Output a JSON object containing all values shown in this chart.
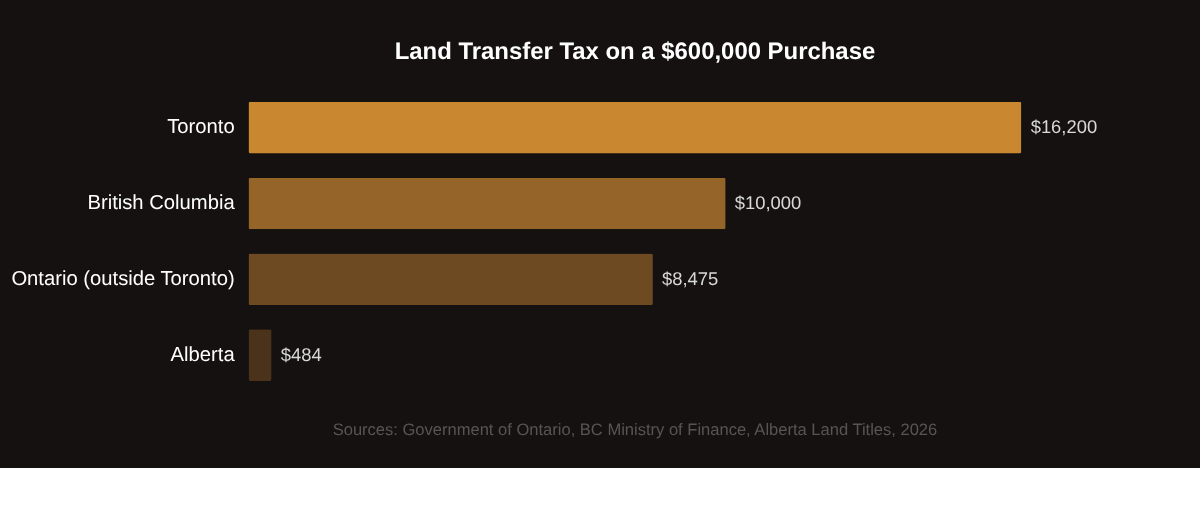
{
  "chart_data": {
    "type": "bar",
    "orientation": "horizontal",
    "title": "Land Transfer Tax on a $600,000 Purchase",
    "categories": [
      "Toronto",
      "British Columbia",
      "Ontario (outside Toronto)",
      "Alberta"
    ],
    "values": [
      16200,
      10000,
      8475,
      484
    ],
    "colors": [
      "#c98830",
      "#946429",
      "#6d4a22",
      "#4b321a"
    ],
    "value_labels": [
      "$16,200",
      "$10,000",
      "$8,475",
      "$484"
    ],
    "annotations": [
      "Sources: Government of Ontario, BC Ministry of Finance, Alberta Land Titles, 2026"
    ],
    "grid": false
  }
}
